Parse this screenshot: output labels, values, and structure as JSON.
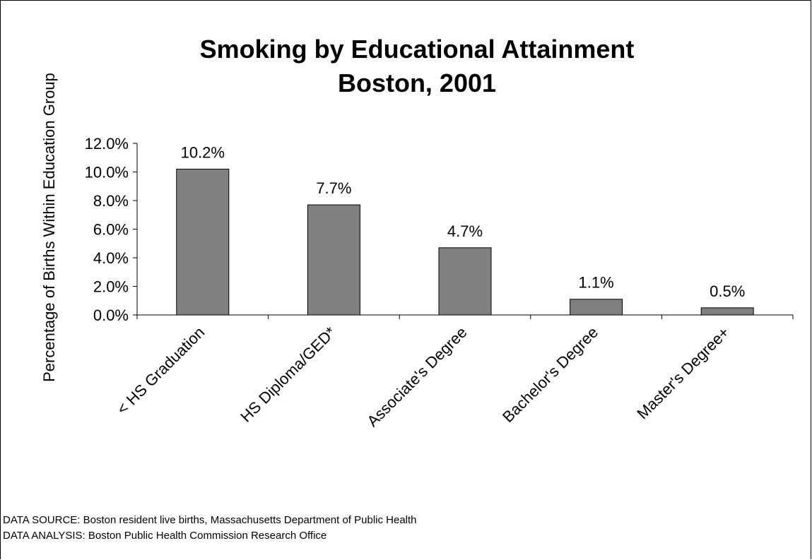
{
  "chart_data": {
    "type": "bar",
    "title": [
      "Smoking by Educational Attainment",
      "Boston, 2001"
    ],
    "ylabel": "Percentage of Births Within Education Group",
    "xlabel": "",
    "categories": [
      "< HS Graduation",
      "HS Diploma/GED*",
      "Associate's Degree",
      "Bachelor's Degree",
      "Master's Degree+"
    ],
    "values": [
      10.2,
      7.7,
      4.7,
      1.1,
      0.5
    ],
    "value_labels": [
      "10.2%",
      "7.7%",
      "4.7%",
      "1.1%",
      "0.5%"
    ],
    "ylim": [
      0,
      12
    ],
    "yticks": [
      0,
      2,
      4,
      6,
      8,
      10,
      12
    ],
    "ytick_labels": [
      "0.0%",
      "2.0%",
      "4.0%",
      "6.0%",
      "8.0%",
      "10.0%",
      "12.0%"
    ],
    "grid": false,
    "legend": "none",
    "colors": {
      "bar_fill": "#808080",
      "bar_stroke": "#000000"
    }
  },
  "footnotes": {
    "source": "DATA SOURCE:  Boston resident live births, Massachusetts Department of Public Health",
    "analysis": "DATA ANALYSIS:  Boston Public Health Commission Research Office"
  }
}
